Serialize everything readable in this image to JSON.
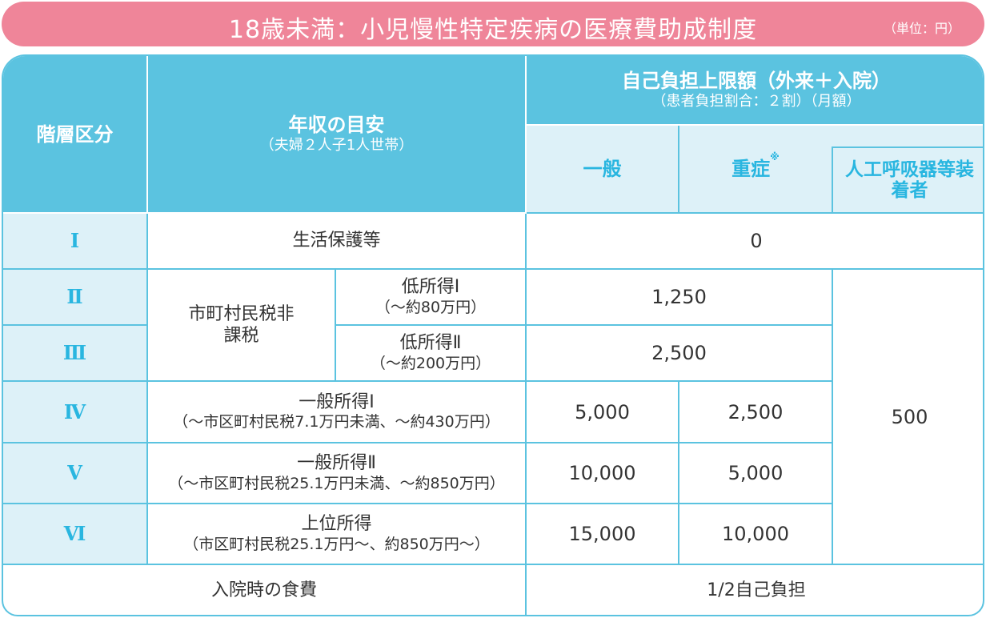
{
  "title": "18歳未満：小児慢性特定疾病の医療費助成制度",
  "unit": "（単位：円）",
  "header": {
    "tier": "階層区分",
    "income": "年収の目安",
    "income_note": "（夫婦２人子1人世帯）",
    "limit": "自己負担上限額（外来＋入院）",
    "limit_note": "（患者負担割合：２割）（月額）",
    "general": "一般",
    "severe": "重症",
    "severe_mark": "※",
    "ventilator": "人工呼吸器等装着者"
  },
  "rows": [
    {
      "tier": "Ⅰ",
      "income": "生活保護等",
      "value": "0"
    },
    {
      "tier": "Ⅱ",
      "group": "市町村民税非課税",
      "income": "低所得Ⅰ",
      "income_note": "（～約80万円）",
      "value": "1,250"
    },
    {
      "tier": "Ⅲ",
      "income": "低所得Ⅱ",
      "income_note": "（～約200万円）",
      "value": "2,500"
    },
    {
      "tier": "Ⅳ",
      "income": "一般所得Ⅰ",
      "income_note": "（～市区町村民税7.1万円未満、～約430万円）",
      "general": "5,000",
      "severe": "2,500"
    },
    {
      "tier": "Ⅴ",
      "income": "一般所得Ⅱ",
      "income_note": "（～市区町村民税25.1万円未満、～約850万円）",
      "general": "10,000",
      "severe": "5,000"
    },
    {
      "tier": "Ⅵ",
      "income": "上位所得",
      "income_note": "（市区町村民税25.1万円～、約850万円～）",
      "general": "15,000",
      "severe": "10,000"
    }
  ],
  "ventilator_value": "500",
  "meal": {
    "label": "入院時の食費",
    "value": "1/2自己負担"
  }
}
